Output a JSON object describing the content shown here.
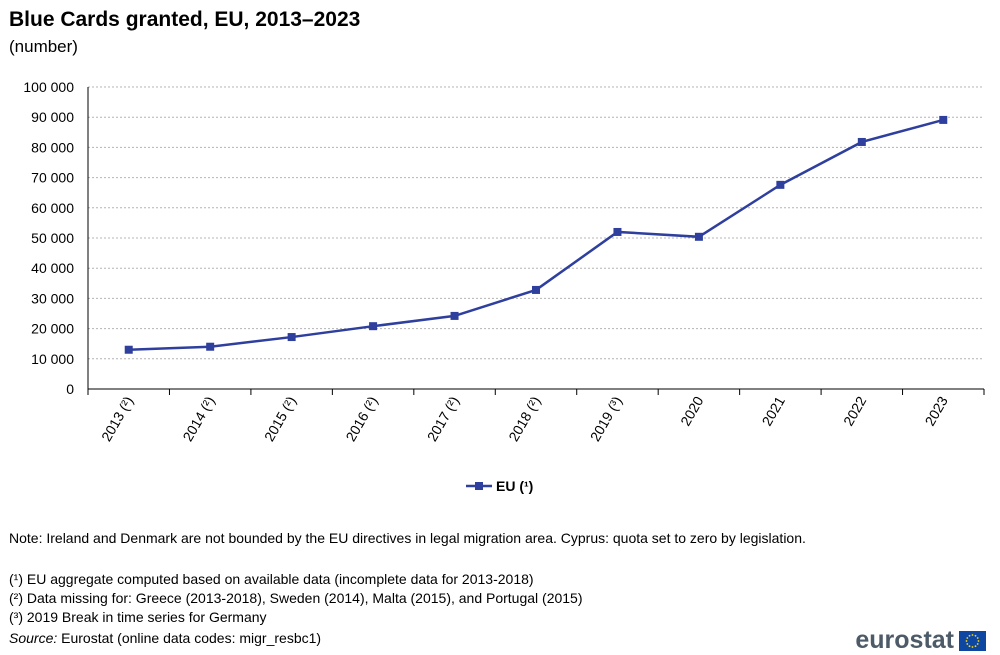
{
  "chart_data": {
    "type": "line",
    "title": "Blue Cards granted, EU, 2013–2023",
    "subtitle": "(number)",
    "categories": [
      "2013 (²)",
      "2014 (²)",
      "2015 (²)",
      "2016 (²)",
      "2017 (²)",
      "2018 (²)",
      "2019 (³)",
      "2020",
      "2021",
      "2022",
      "2023"
    ],
    "series": [
      {
        "name": "EU (¹)",
        "color": "#2e3f9e",
        "values": [
          13000,
          14000,
          17200,
          20800,
          24200,
          32800,
          52000,
          50400,
          67600,
          81800,
          89100
        ]
      }
    ],
    "ylim": [
      0,
      100000
    ],
    "yticks": [
      0,
      10000,
      20000,
      30000,
      40000,
      50000,
      60000,
      70000,
      80000,
      90000,
      100000
    ],
    "ytick_labels": [
      "0",
      "10 000",
      "20 000",
      "30 000",
      "40 000",
      "50 000",
      "60 000",
      "70 000",
      "80 000",
      "90 000",
      "100 000"
    ],
    "grid": true,
    "legend_position": "bottom-center"
  },
  "notes": {
    "note": "Note: Ireland and Denmark are not bounded by the EU directives in legal migration area. Cyprus: quota set to zero by legislation.",
    "fn1": "(¹) EU aggregate computed based on available data (incomplete data for 2013-2018)",
    "fn2": "(²) Data missing for: Greece (2013-2018), Sweden (2014), Malta (2015), and Portugal (2015)",
    "fn3": "(³) 2019 Break in time series for Germany",
    "source_label": "Source:",
    "source_text": " Eurostat (online data codes: migr_resbc1)"
  },
  "logo": {
    "text": "eurostat",
    "flag_icon": "eu-flag-icon"
  }
}
